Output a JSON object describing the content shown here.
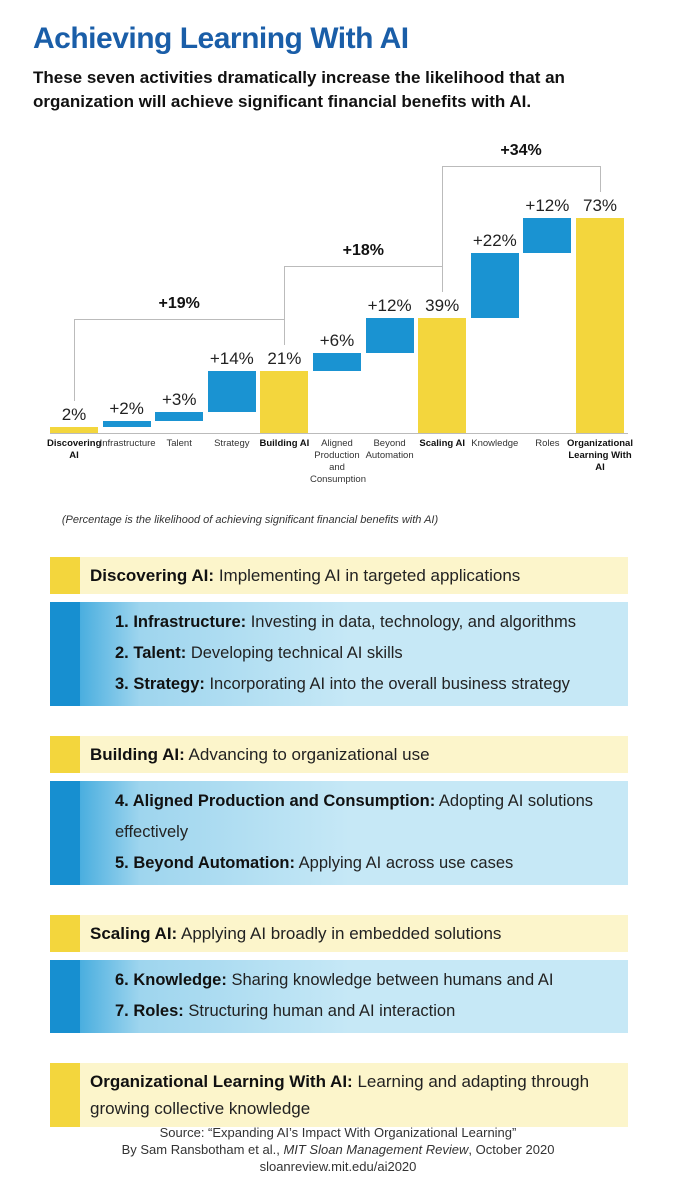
{
  "header": {
    "title": "Achieving Learning With AI",
    "subtitle": "These seven activities dramatically increase the likelihood that an organization will achieve significant financial benefits with AI."
  },
  "chart_data": {
    "type": "waterfall",
    "categories": [
      "Discovering AI",
      "Infrastructure",
      "Talent",
      "Strategy",
      "Building AI",
      "Aligned Production and Consumption",
      "Beyond Automation",
      "Scaling AI",
      "Knowledge",
      "Roles",
      "Organizational Learning With AI"
    ],
    "values": [
      2,
      2,
      3,
      14,
      21,
      6,
      12,
      39,
      22,
      12,
      73
    ],
    "value_labels": [
      "2%",
      "+2%",
      "+3%",
      "+14%",
      "21%",
      "+6%",
      "+12%",
      "39%",
      "+22%",
      "+12%",
      "73%"
    ],
    "colors": [
      "#f3d63d",
      "#1a93d2",
      "#1a93d2",
      "#1a93d2",
      "#f3d63d",
      "#1a93d2",
      "#1a93d2",
      "#f3d63d",
      "#1a93d2",
      "#1a93d2",
      "#f3d63d"
    ],
    "annotations": [
      "+19%",
      "+18%",
      "+34%"
    ],
    "footnote": "(Percentage is the likelihood of achieving significant financial benefits with AI)"
  },
  "sections": [
    {
      "title": "Discovering AI:",
      "desc": "Implementing AI in targeted applications",
      "items": [
        {
          "title": "1. Infrastructure:",
          "desc": "Investing in data, technology, and algorithms"
        },
        {
          "title": "2. Talent:",
          "desc": "Developing technical AI skills"
        },
        {
          "title": "3. Strategy:",
          "desc": "Incorporating AI into the overall business strategy"
        }
      ]
    },
    {
      "title": "Building AI:",
      "desc": "Advancing to organizational use",
      "items": [
        {
          "title": "4. Aligned Production and Consumption:",
          "desc": "Adopting AI solutions effectively"
        },
        {
          "title": "5. Beyond Automation:",
          "desc": "Applying AI across use cases"
        }
      ]
    },
    {
      "title": "Scaling AI:",
      "desc": "Applying AI broadly in embedded solutions",
      "items": [
        {
          "title": "6. Knowledge:",
          "desc": "Sharing knowledge between humans and AI"
        },
        {
          "title": "7. Roles:",
          "desc": "Structuring human and AI interaction"
        }
      ]
    },
    {
      "title": "Organizational Learning With AI:",
      "desc": "Learning and adapting through growing collective knowledge",
      "items": []
    }
  ],
  "source": {
    "line1": "Source: “Expanding AI’s Impact With Organizational Learning”",
    "line2a": "By Sam Ransbotham et al., ",
    "line2b": "MIT Sloan Management Review",
    "line2c": ", October 2020",
    "line3": "sloanreview.mit.edu/ai2020"
  }
}
